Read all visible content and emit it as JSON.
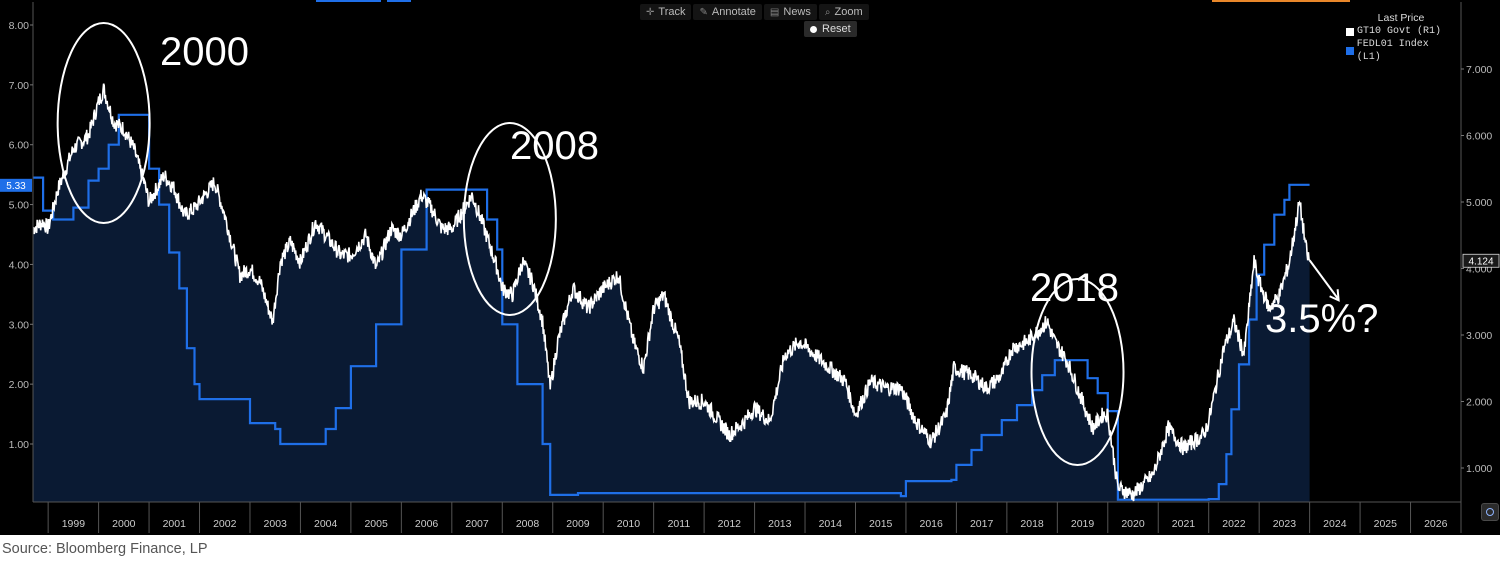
{
  "toolbar": {
    "track_label": "Track",
    "annotate_label": "Annotate",
    "news_label": "News",
    "zoom_label": "Zoom",
    "reset_label": "Reset"
  },
  "legend": {
    "title": "Last Price",
    "items": [
      {
        "label": "GT10 Govt  (R1)",
        "color": "#ffffff"
      },
      {
        "label": "FEDL01 Index  (L1)",
        "color": "#1f6fe8"
      }
    ]
  },
  "source_note": "Source: Bloomberg Finance, LP",
  "chart_data": {
    "type": "line",
    "title": "",
    "xlabel": "",
    "ylabel": "",
    "x_ticks": [
      "1999",
      "2000",
      "2001",
      "2002",
      "2003",
      "2004",
      "2005",
      "2006",
      "2007",
      "2008",
      "2009",
      "2010",
      "2011",
      "2012",
      "2013",
      "2014",
      "2015",
      "2016",
      "2017",
      "2018",
      "2019",
      "2020",
      "2021",
      "2022",
      "2023",
      "2024",
      "2025",
      "2026"
    ],
    "xlim": [
      1998.7,
      2027.0
    ],
    "left_axis": {
      "ticks": [
        "1.00",
        "2.00",
        "3.00",
        "4.00",
        "5.00",
        "6.00",
        "7.00",
        "8.00"
      ],
      "last_value_label": "5.33"
    },
    "right_axis": {
      "ticks": [
        "1.000",
        "2.000",
        "3.000",
        "4.000",
        "5.000",
        "6.000",
        "7.000"
      ],
      "last_value_label": "4.124"
    },
    "series": [
      {
        "name": "FEDL01 Index  (L1)",
        "axis": "left",
        "color": "#1f6fe8",
        "points": [
          [
            1998.7,
            5.45
          ],
          [
            1998.9,
            4.9
          ],
          [
            1999.1,
            4.75
          ],
          [
            1999.5,
            4.95
          ],
          [
            1999.8,
            5.4
          ],
          [
            2000.0,
            5.6
          ],
          [
            2000.2,
            6.0
          ],
          [
            2000.4,
            6.5
          ],
          [
            2000.9,
            6.5
          ],
          [
            2001.0,
            5.6
          ],
          [
            2001.2,
            5.0
          ],
          [
            2001.4,
            4.2
          ],
          [
            2001.6,
            3.6
          ],
          [
            2001.75,
            2.6
          ],
          [
            2001.9,
            2.0
          ],
          [
            2002.0,
            1.75
          ],
          [
            2002.9,
            1.75
          ],
          [
            2003.0,
            1.35
          ],
          [
            2003.5,
            1.25
          ],
          [
            2003.6,
            1.0
          ],
          [
            2004.4,
            1.0
          ],
          [
            2004.5,
            1.25
          ],
          [
            2004.7,
            1.6
          ],
          [
            2005.0,
            2.3
          ],
          [
            2005.5,
            3.0
          ],
          [
            2006.0,
            4.25
          ],
          [
            2006.5,
            5.25
          ],
          [
            2007.6,
            5.25
          ],
          [
            2007.7,
            4.75
          ],
          [
            2007.9,
            4.25
          ],
          [
            2008.0,
            3.0
          ],
          [
            2008.3,
            2.0
          ],
          [
            2008.8,
            1.0
          ],
          [
            2008.95,
            0.15
          ],
          [
            2009.5,
            0.18
          ],
          [
            2015.9,
            0.13
          ],
          [
            2016.0,
            0.38
          ],
          [
            2016.9,
            0.4
          ],
          [
            2017.0,
            0.65
          ],
          [
            2017.3,
            0.9
          ],
          [
            2017.5,
            1.15
          ],
          [
            2017.9,
            1.4
          ],
          [
            2018.2,
            1.65
          ],
          [
            2018.5,
            1.9
          ],
          [
            2018.7,
            2.15
          ],
          [
            2018.95,
            2.4
          ],
          [
            2019.5,
            2.4
          ],
          [
            2019.6,
            2.1
          ],
          [
            2019.8,
            1.85
          ],
          [
            2020.0,
            1.55
          ],
          [
            2020.2,
            0.07
          ],
          [
            2022.0,
            0.08
          ],
          [
            2022.2,
            0.33
          ],
          [
            2022.35,
            0.83
          ],
          [
            2022.45,
            1.58
          ],
          [
            2022.6,
            2.33
          ],
          [
            2022.8,
            3.08
          ],
          [
            2022.95,
            3.83
          ],
          [
            2023.1,
            4.33
          ],
          [
            2023.3,
            4.83
          ],
          [
            2023.5,
            5.08
          ],
          [
            2023.6,
            5.33
          ],
          [
            2024.0,
            5.33
          ]
        ]
      },
      {
        "name": "GT10 Govt  (R1)",
        "axis": "right",
        "color": "#ffffff",
        "points": [
          [
            1998.7,
            4.6
          ],
          [
            1998.9,
            4.7
          ],
          [
            1999.0,
            4.6
          ],
          [
            1999.2,
            5.2
          ],
          [
            1999.5,
            5.8
          ],
          [
            1999.8,
            6.0
          ],
          [
            2000.0,
            6.5
          ],
          [
            2000.1,
            6.7
          ],
          [
            2000.3,
            6.2
          ],
          [
            2000.5,
            6.1
          ],
          [
            2000.7,
            5.8
          ],
          [
            2000.9,
            5.3
          ],
          [
            2001.0,
            5.0
          ],
          [
            2001.3,
            5.4
          ],
          [
            2001.5,
            5.2
          ],
          [
            2001.7,
            4.8
          ],
          [
            2001.9,
            4.9
          ],
          [
            2002.0,
            5.0
          ],
          [
            2002.3,
            5.3
          ],
          [
            2002.5,
            4.8
          ],
          [
            2002.8,
            3.9
          ],
          [
            2003.0,
            4.0
          ],
          [
            2003.2,
            3.8
          ],
          [
            2003.45,
            3.2
          ],
          [
            2003.6,
            4.1
          ],
          [
            2003.8,
            4.4
          ],
          [
            2004.0,
            4.1
          ],
          [
            2004.3,
            4.7
          ],
          [
            2004.5,
            4.5
          ],
          [
            2004.8,
            4.2
          ],
          [
            2005.0,
            4.2
          ],
          [
            2005.3,
            4.5
          ],
          [
            2005.5,
            4.0
          ],
          [
            2005.8,
            4.6
          ],
          [
            2006.0,
            4.5
          ],
          [
            2006.4,
            5.1
          ],
          [
            2006.6,
            4.9
          ],
          [
            2006.8,
            4.6
          ],
          [
            2007.0,
            4.6
          ],
          [
            2007.4,
            5.1
          ],
          [
            2007.6,
            4.7
          ],
          [
            2007.9,
            4.0
          ],
          [
            2008.0,
            3.7
          ],
          [
            2008.2,
            3.6
          ],
          [
            2008.4,
            4.1
          ],
          [
            2008.6,
            3.8
          ],
          [
            2008.8,
            3.2
          ],
          [
            2008.95,
            2.2
          ],
          [
            2009.1,
            2.9
          ],
          [
            2009.4,
            3.7
          ],
          [
            2009.7,
            3.4
          ],
          [
            2010.0,
            3.7
          ],
          [
            2010.3,
            3.9
          ],
          [
            2010.6,
            2.9
          ],
          [
            2010.8,
            2.5
          ],
          [
            2011.0,
            3.4
          ],
          [
            2011.2,
            3.6
          ],
          [
            2011.5,
            2.9
          ],
          [
            2011.7,
            2.0
          ],
          [
            2012.0,
            2.0
          ],
          [
            2012.5,
            1.5
          ],
          [
            2012.8,
            1.7
          ],
          [
            2013.0,
            1.9
          ],
          [
            2013.3,
            1.7
          ],
          [
            2013.6,
            2.7
          ],
          [
            2013.9,
            2.9
          ],
          [
            2014.2,
            2.7
          ],
          [
            2014.5,
            2.5
          ],
          [
            2014.8,
            2.3
          ],
          [
            2015.0,
            1.8
          ],
          [
            2015.3,
            2.3
          ],
          [
            2015.6,
            2.2
          ],
          [
            2015.9,
            2.2
          ],
          [
            2016.2,
            1.7
          ],
          [
            2016.5,
            1.4
          ],
          [
            2016.8,
            1.8
          ],
          [
            2016.95,
            2.5
          ],
          [
            2017.3,
            2.4
          ],
          [
            2017.6,
            2.2
          ],
          [
            2017.9,
            2.4
          ],
          [
            2018.1,
            2.8
          ],
          [
            2018.4,
            2.9
          ],
          [
            2018.8,
            3.2
          ],
          [
            2018.95,
            2.9
          ],
          [
            2019.2,
            2.6
          ],
          [
            2019.5,
            2.0
          ],
          [
            2019.7,
            1.6
          ],
          [
            2019.9,
            1.8
          ],
          [
            2020.0,
            1.8
          ],
          [
            2020.2,
            0.7
          ],
          [
            2020.5,
            0.6
          ],
          [
            2020.9,
            0.9
          ],
          [
            2021.2,
            1.6
          ],
          [
            2021.5,
            1.3
          ],
          [
            2021.9,
            1.5
          ],
          [
            2022.0,
            1.7
          ],
          [
            2022.3,
            2.8
          ],
          [
            2022.5,
            3.2
          ],
          [
            2022.7,
            2.7
          ],
          [
            2022.9,
            4.1
          ],
          [
            2023.0,
            3.8
          ],
          [
            2023.2,
            3.4
          ],
          [
            2023.4,
            3.6
          ],
          [
            2023.6,
            4.1
          ],
          [
            2023.8,
            5.0
          ],
          [
            2023.95,
            4.2
          ],
          [
            2024.0,
            4.124
          ]
        ]
      }
    ],
    "annotations": [
      {
        "text": "2000",
        "shape": "ellipse"
      },
      {
        "text": "2008",
        "shape": "ellipse"
      },
      {
        "text": "2018",
        "shape": "ellipse"
      },
      {
        "text": "3.5%?",
        "shape": "arrow"
      }
    ],
    "grid": false,
    "legend_position": "top-right"
  }
}
